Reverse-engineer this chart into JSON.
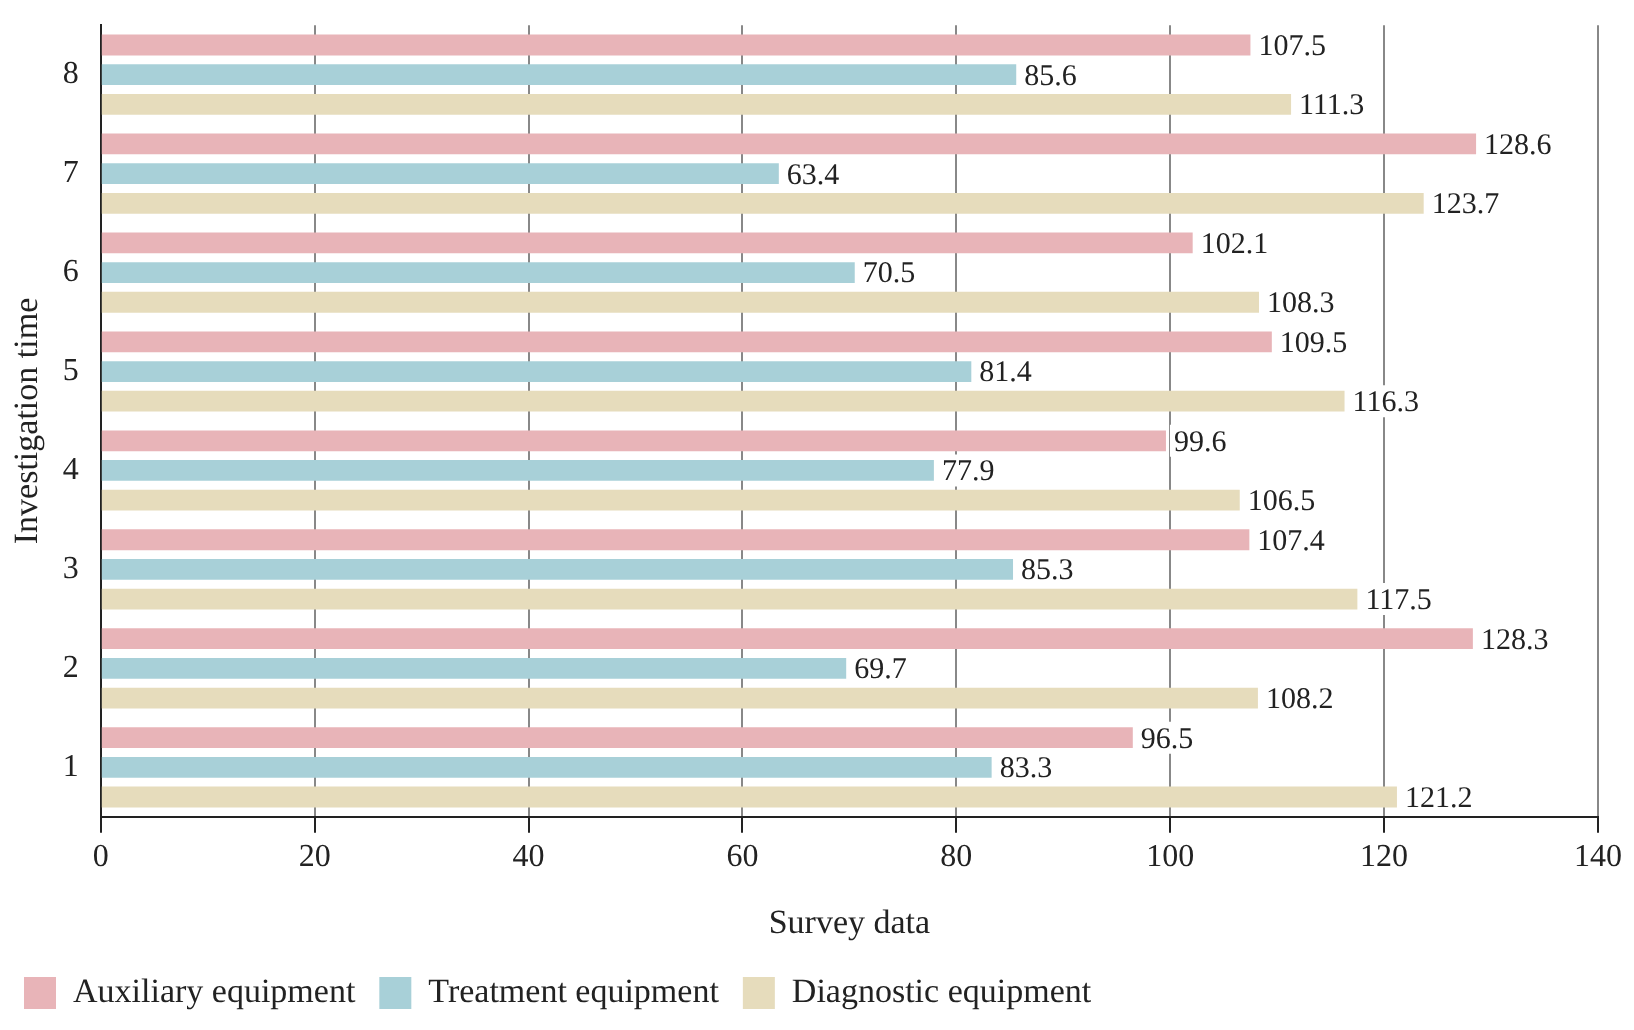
{
  "chart_data": {
    "type": "bar",
    "orientation": "horizontal",
    "xlabel": "Survey data",
    "ylabel": "Investigation time",
    "categories": [
      "8",
      "7",
      "6",
      "5",
      "4",
      "3",
      "2",
      "1"
    ],
    "series": [
      {
        "name": "Auxiliary equipment",
        "color": "#e8b4b8",
        "values": [
          107.5,
          128.6,
          102.1,
          109.5,
          99.6,
          107.4,
          128.3,
          96.5
        ]
      },
      {
        "name": "Treatment equipment",
        "color": "#a8d0d8",
        "values": [
          85.6,
          63.4,
          70.5,
          81.4,
          77.9,
          85.3,
          69.7,
          83.3
        ]
      },
      {
        "name": "Diagnostic equipment",
        "color": "#e6dcbc",
        "values": [
          111.3,
          123.7,
          108.3,
          116.3,
          106.5,
          117.5,
          108.2,
          121.2
        ]
      }
    ],
    "xlim": [
      0,
      140
    ],
    "xticks": [
      0,
      20,
      40,
      60,
      80,
      100,
      120,
      140
    ],
    "grid": "x",
    "legend": "bottom left",
    "data_labels": true
  }
}
